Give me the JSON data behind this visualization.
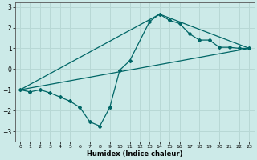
{
  "xlabel": "Humidex (Indice chaleur)",
  "bg_color": "#cceae8",
  "grid_color": "#b8d8d5",
  "line_color": "#006666",
  "xlim": [
    -0.5,
    23.5
  ],
  "ylim": [
    -3.5,
    3.2
  ],
  "xticks": [
    0,
    1,
    2,
    3,
    4,
    5,
    6,
    7,
    8,
    9,
    10,
    11,
    12,
    13,
    14,
    15,
    16,
    17,
    18,
    19,
    20,
    21,
    22,
    23
  ],
  "yticks": [
    -3,
    -2,
    -1,
    0,
    1,
    2,
    3
  ],
  "series_main": {
    "x": [
      0,
      1,
      2,
      3,
      4,
      5,
      6,
      7,
      8,
      9,
      10,
      11,
      13,
      14,
      15,
      16,
      17,
      18,
      19,
      20,
      21,
      22,
      23
    ],
    "y": [
      -1.0,
      -1.1,
      -1.0,
      -1.15,
      -1.35,
      -1.55,
      -1.85,
      -2.55,
      -2.75,
      -1.85,
      -0.05,
      0.4,
      2.3,
      2.65,
      2.35,
      2.2,
      1.7,
      1.4,
      1.4,
      1.05,
      1.05,
      1.0,
      1.0
    ]
  },
  "series_line1": {
    "x": [
      0,
      23
    ],
    "y": [
      -1.0,
      1.0
    ]
  },
  "series_line2": {
    "x": [
      0,
      14,
      23
    ],
    "y": [
      -1.0,
      2.65,
      1.0
    ]
  }
}
